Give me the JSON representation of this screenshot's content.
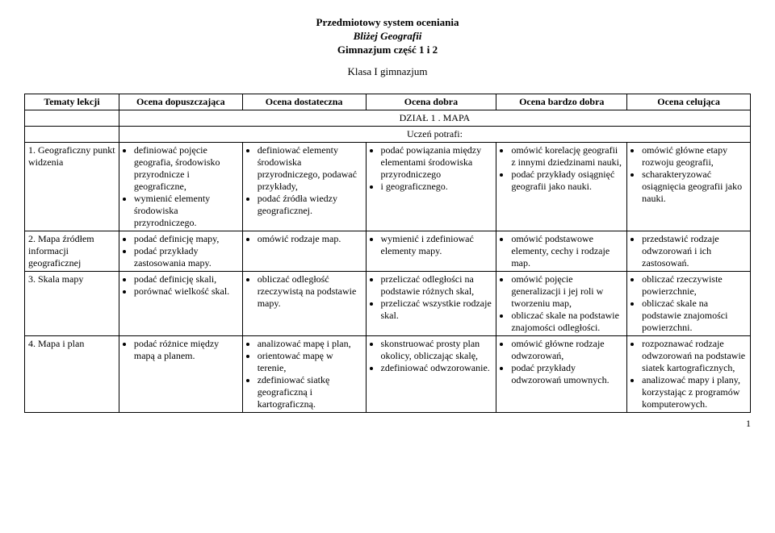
{
  "header": {
    "line1": "Przedmiotowy system oceniania",
    "line2": "Bliżej Geografii",
    "line3": "Gimnazjum część 1 i 2",
    "klasa": "Klasa I gimnazjum"
  },
  "columns": [
    "Tematy lekcji",
    "Ocena dopuszczająca",
    "Ocena dostateczna",
    "Ocena dobra",
    "Ocena bardzo dobra",
    "Ocena celująca"
  ],
  "section": {
    "dzial": "DZIAŁ 1 . MAPA",
    "uczen": "Uczeń potrafi:"
  },
  "rows": [
    {
      "topic": "1. Geograficzny punkt widzenia",
      "c1": [
        "definiować pojęcie geografia, środowisko przyrodnicze i geograficzne,",
        "wymienić elementy środowiska przyrodniczego."
      ],
      "c2": [
        "definiować elementy środowiska przyrodniczego, podawać przykłady,",
        "podać źródła wiedzy geograficznej."
      ],
      "c3": [
        "podać powiązania między elementami środowiska przyrodniczego",
        "i geograficznego."
      ],
      "c4": [
        "omówić korelację geografii z innymi dziedzinami nauki,",
        "podać przykłady osiągnięć geografii jako nauki."
      ],
      "c5": [
        "omówić główne etapy rozwoju geografii,",
        "scharakteryzować osiągnięcia geografii jako nauki."
      ]
    },
    {
      "topic": "2. Mapa źródłem informacji geograficznej",
      "c1": [
        "podać definicję mapy,",
        "podać przykłady zastosowania mapy."
      ],
      "c2": [
        "omówić rodzaje map."
      ],
      "c3": [
        "wymienić i zdefiniować elementy mapy."
      ],
      "c4": [
        "omówić podstawowe elementy, cechy i rodzaje map."
      ],
      "c5": [
        "przedstawić rodzaje odwzorowań i ich zastosowań."
      ]
    },
    {
      "topic": "3. Skala mapy",
      "c1": [
        "podać definicję skali,",
        "porównać wielkość skal."
      ],
      "c2": [
        "obliczać odległość rzeczywistą na podstawie mapy."
      ],
      "c3": [
        "przeliczać odległości na podstawie różnych skal,",
        "przeliczać wszystkie rodzaje skal."
      ],
      "c4": [
        "omówić pojęcie generalizacji i jej roli w tworzeniu map,",
        "obliczać skale na podstawie znajomości odległości."
      ],
      "c5": [
        "obliczać rzeczywiste powierzchnie,",
        "obliczać skale na podstawie znajomości powierzchni."
      ]
    },
    {
      "topic": "4. Mapa i plan",
      "c1": [
        "podać różnice między mapą a planem."
      ],
      "c2": [
        "analizować mapę i plan,",
        "orientować mapę w terenie,",
        "zdefiniować siatkę geograficzną i kartograficzną."
      ],
      "c3": [
        "skonstruować prosty plan okolicy, obliczając skalę,",
        "zdefiniować odwzorowanie."
      ],
      "c4": [
        "omówić główne rodzaje odwzorowań,",
        "podać przykłady odwzorowań umownych."
      ],
      "c5": [
        "rozpoznawać rodzaje odwzorowań na podstawie siatek kartograficznych,",
        "analizować mapy i plany, korzystając z programów komputerowych."
      ]
    }
  ],
  "pagenum": "1"
}
